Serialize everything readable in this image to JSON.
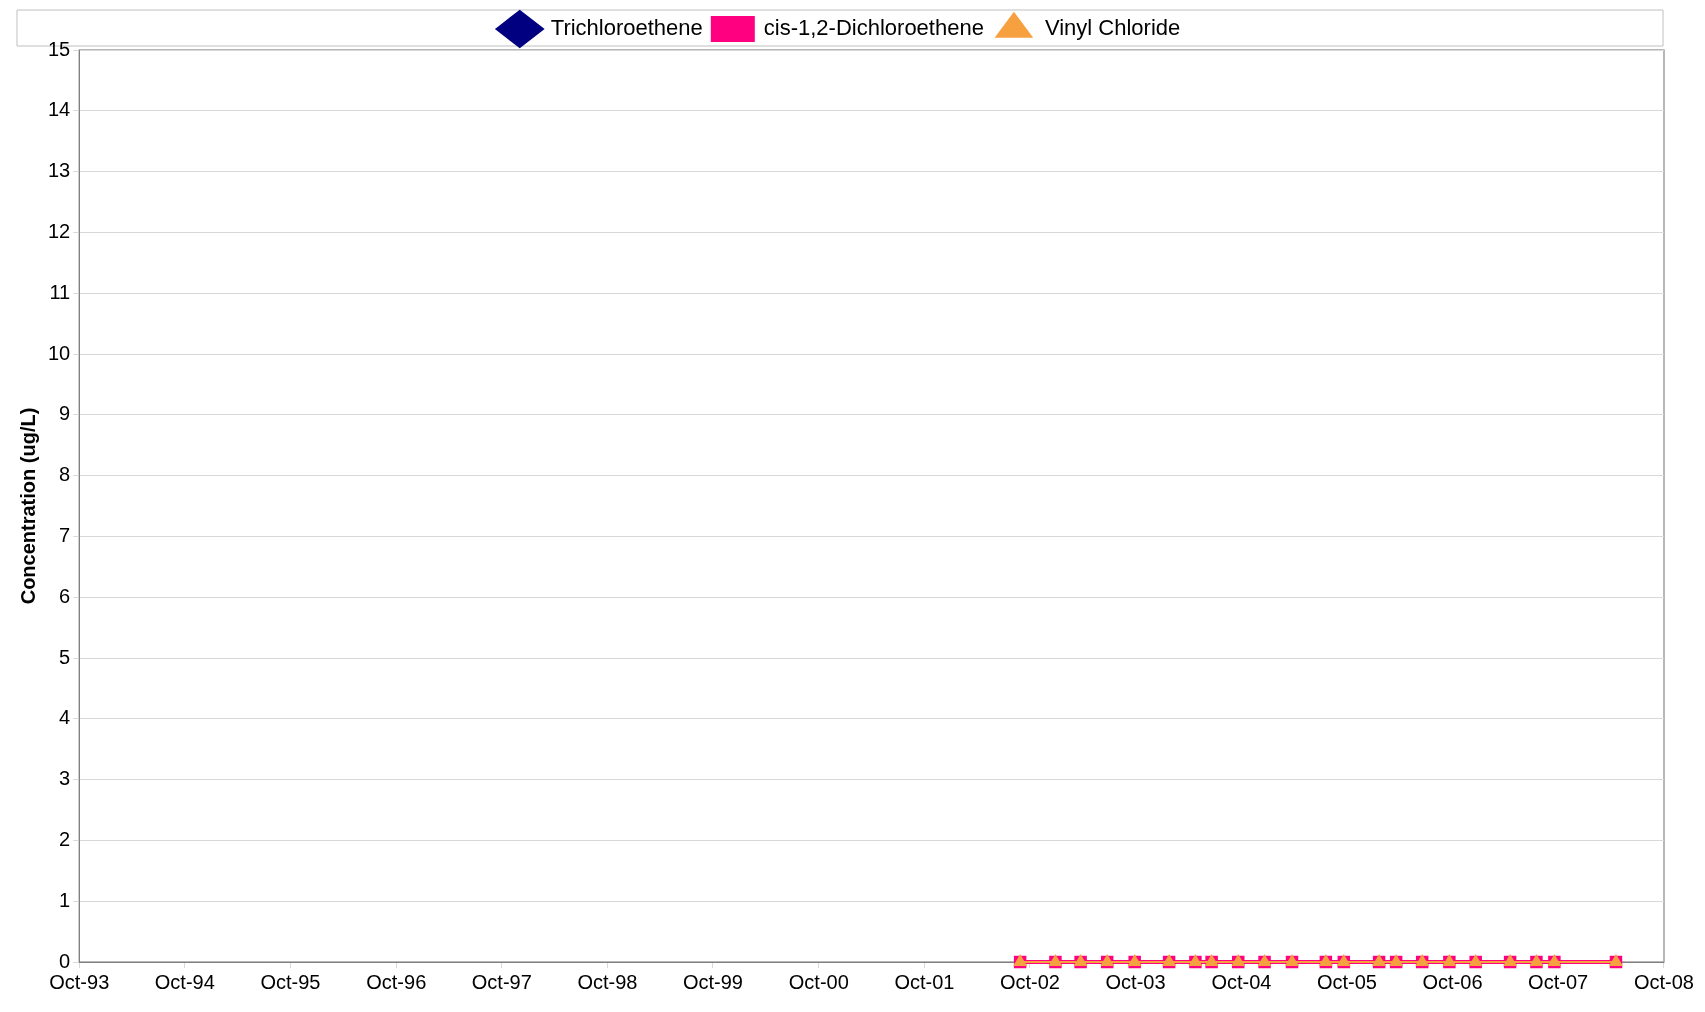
{
  "chart_data": {
    "type": "line",
    "ylabel": "Concentration (ug/L)",
    "x": [
      "2002-08-28",
      "2002-12-28",
      "2003-03-25",
      "2003-06-25",
      "2003-09-28",
      "2004-01-25",
      "2004-04-25",
      "2004-06-20",
      "2004-09-20",
      "2004-12-20",
      "2005-03-25",
      "2005-07-20",
      "2005-09-20",
      "2006-01-20",
      "2006-03-20",
      "2006-06-18",
      "2006-09-20",
      "2006-12-20",
      "2007-04-18",
      "2007-07-18",
      "2007-09-18",
      "2008-04-18"
    ],
    "series": [
      {
        "name": "Trichloroethene",
        "color": "#000080",
        "marker": "diamond",
        "values": [
          null,
          null,
          null,
          null,
          null,
          null,
          null,
          null,
          null,
          null,
          null,
          null,
          null,
          null,
          null,
          null,
          null,
          null,
          null,
          null,
          null,
          null
        ]
      },
      {
        "name": "cis-1,2-Dichloroethene",
        "color": "#ff0080",
        "marker": "square",
        "values": [
          0,
          0,
          0,
          0,
          0,
          0,
          0,
          0,
          0,
          0,
          0,
          0,
          0,
          0,
          0,
          0,
          0,
          0,
          0,
          0,
          0,
          0
        ]
      },
      {
        "name": "Vinyl Chloride",
        "color": "#f7a040",
        "marker": "triangle",
        "values": [
          0,
          0,
          0,
          0,
          0,
          0,
          0,
          0,
          0,
          0,
          0,
          0,
          0,
          0,
          0,
          0,
          0,
          0,
          0,
          0,
          0,
          0
        ]
      }
    ],
    "xlim": [
      "1993-10-01",
      "2008-10-01"
    ],
    "xticks": [
      {
        "value": "1993-10-01",
        "label": "Oct-93"
      },
      {
        "value": "1994-10-01",
        "label": "Oct-94"
      },
      {
        "value": "1995-10-01",
        "label": "Oct-95"
      },
      {
        "value": "1996-10-01",
        "label": "Oct-96"
      },
      {
        "value": "1997-10-01",
        "label": "Oct-97"
      },
      {
        "value": "1998-10-01",
        "label": "Oct-98"
      },
      {
        "value": "1999-10-01",
        "label": "Oct-99"
      },
      {
        "value": "2000-10-01",
        "label": "Oct-00"
      },
      {
        "value": "2001-10-01",
        "label": "Oct-01"
      },
      {
        "value": "2002-10-01",
        "label": "Oct-02"
      },
      {
        "value": "2003-10-01",
        "label": "Oct-03"
      },
      {
        "value": "2004-10-01",
        "label": "Oct-04"
      },
      {
        "value": "2005-10-01",
        "label": "Oct-05"
      },
      {
        "value": "2006-10-01",
        "label": "Oct-06"
      },
      {
        "value": "2007-10-01",
        "label": "Oct-07"
      },
      {
        "value": "2008-10-01",
        "label": "Oct-08"
      }
    ],
    "ylim": [
      0,
      15
    ],
    "yticks": [
      0,
      1,
      2,
      3,
      4,
      5,
      6,
      7,
      8,
      9,
      10,
      11,
      12,
      13,
      14,
      15
    ],
    "grid": "y",
    "legend": "top",
    "line_style": "solid"
  }
}
